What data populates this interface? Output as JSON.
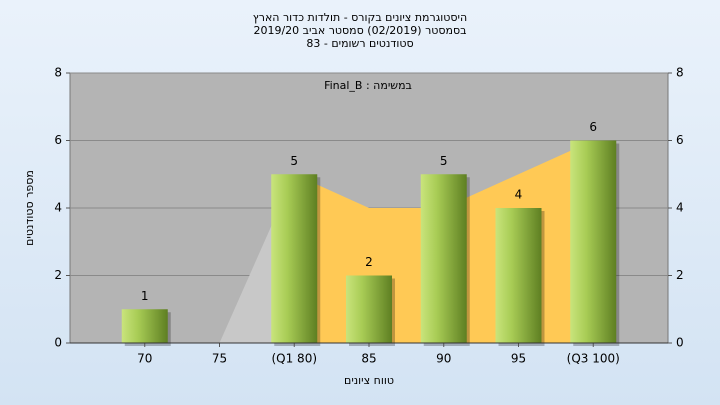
{
  "chart_data": {
    "type": "bar",
    "title": [
      "היסטוגרמת ציונים בקורס - תולדות כדור הארץ",
      "בסמסטר  (02/2019)  סמסטר אביב 2019/20",
      "סטודנטים רשומים - 83"
    ],
    "annotation": "Final_B : במשימה",
    "x_label": "טווח ציונים",
    "y_label": "מספר סטודנטים",
    "categories": [
      "70",
      "75",
      "(Q1 80)",
      "85",
      "90",
      "95",
      "(Q3 100)"
    ],
    "values": [
      1,
      0,
      5,
      2,
      5,
      4,
      6
    ],
    "value_labels": [
      "1",
      null,
      "5",
      "2",
      "5",
      "4",
      "6"
    ],
    "color": "#5e7f22",
    "area": {
      "values": [
        null,
        0,
        5,
        4,
        4,
        5,
        6
      ],
      "colors": [
        null,
        null,
        "#c8c8c8",
        "#ffc955",
        "#ffc955",
        "#ffc955",
        "#ffc955"
      ]
    },
    "ylim": [
      0,
      8
    ],
    "yticks": [
      0,
      2,
      4,
      6,
      8
    ],
    "y2lim": [
      0,
      8
    ],
    "y2ticks": [
      0,
      2,
      4,
      6,
      8
    ],
    "grid": true
  }
}
